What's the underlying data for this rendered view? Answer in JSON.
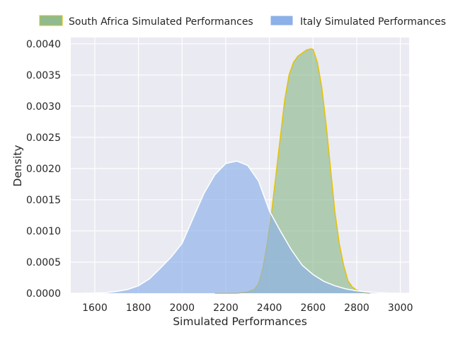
{
  "chart_data": {
    "type": "area",
    "title": "",
    "xlabel": "Simulated Performances",
    "ylabel": "Density",
    "xlim": [
      1490,
      3040
    ],
    "ylim": [
      0,
      0.0041
    ],
    "xticks": [
      1600,
      1800,
      2000,
      2200,
      2400,
      2600,
      2800,
      3000
    ],
    "yticks": [
      0.0,
      0.0005,
      0.001,
      0.0015,
      0.002,
      0.0025,
      0.003,
      0.0035,
      0.004
    ],
    "ytick_labels": [
      "0.0000",
      "0.0005",
      "0.0010",
      "0.0015",
      "0.0020",
      "0.0025",
      "0.0030",
      "0.0035",
      "0.0040"
    ],
    "grid": true,
    "legend": {
      "placement": "top, outside plot, 2 columns"
    },
    "series": [
      {
        "name": "South Africa Simulated Performances",
        "fill": "#8fbb8f",
        "edge": "#e6c200",
        "x": [
          2150,
          2250,
          2300,
          2330,
          2350,
          2370,
          2390,
          2410,
          2430,
          2450,
          2470,
          2490,
          2510,
          2530,
          2550,
          2570,
          2590,
          2600,
          2620,
          2640,
          2660,
          2680,
          2700,
          2720,
          2740,
          2760,
          2780,
          2800,
          2820,
          2840,
          2860
        ],
        "y": [
          0.0,
          0.0,
          2e-05,
          6e-05,
          0.00015,
          0.0004,
          0.0008,
          0.0013,
          0.0019,
          0.0025,
          0.0031,
          0.0035,
          0.0037,
          0.0038,
          0.00385,
          0.0039,
          0.00392,
          0.00391,
          0.0037,
          0.0033,
          0.0027,
          0.002,
          0.0013,
          0.0008,
          0.00045,
          0.0002,
          0.0001,
          5e-05,
          2e-05,
          5e-06,
          0.0
        ]
      },
      {
        "name": "Italy Simulated Performances",
        "fill": "#8cb0e8",
        "edge": "#ffffff",
        "x": [
          1550,
          1650,
          1700,
          1750,
          1800,
          1850,
          1900,
          1950,
          2000,
          2050,
          2100,
          2150,
          2200,
          2250,
          2300,
          2350,
          2400,
          2450,
          2500,
          2550,
          2600,
          2650,
          2700,
          2750,
          2800,
          2850,
          2900,
          2950,
          3000
        ],
        "y": [
          0.0,
          1e-05,
          3e-05,
          6e-05,
          0.00012,
          0.00023,
          0.0004,
          0.00058,
          0.0008,
          0.0012,
          0.0016,
          0.0019,
          0.00208,
          0.00212,
          0.00205,
          0.0018,
          0.00132,
          0.001,
          0.0007,
          0.00045,
          0.0003,
          0.00019,
          0.00012,
          7e-05,
          4e-05,
          2e-05,
          1e-05,
          3e-06,
          0.0
        ]
      }
    ]
  }
}
